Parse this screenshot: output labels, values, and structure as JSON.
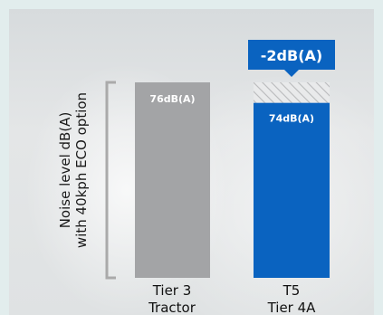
{
  "chart_data": {
    "type": "bar",
    "ylabel_lines": [
      "Noise level dB(A)",
      "with 40kph ECO option"
    ],
    "categories": [
      [
        "Tier 3",
        "Tractor"
      ],
      [
        "T5",
        "Tier 4A"
      ]
    ],
    "values": [
      76,
      74
    ],
    "data_labels": [
      "76dB(A)",
      "74dB(A)"
    ],
    "reduction": 2,
    "reduction_label": "-2dB(A)",
    "ylim": [
      0,
      76
    ],
    "colors": {
      "tier3": "#a3a4a6",
      "t5": "#0a63c0",
      "hatch": "#b9babc"
    }
  }
}
